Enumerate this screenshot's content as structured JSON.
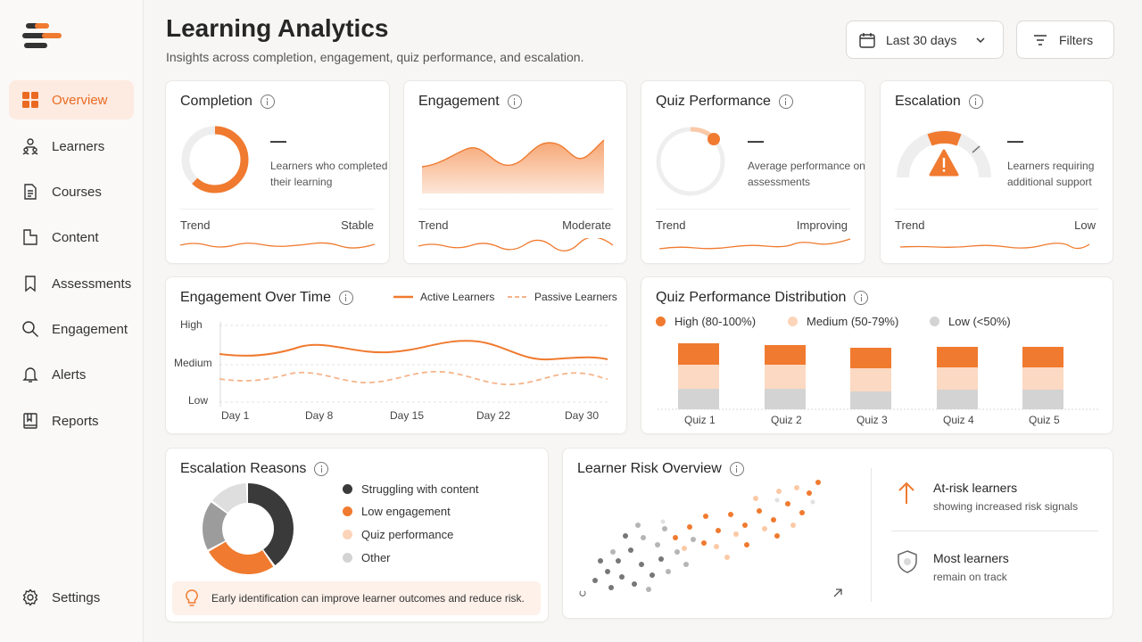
{
  "sidebar": {
    "items": [
      {
        "label": "Overview",
        "icon": "grid-icon",
        "active": true
      },
      {
        "label": "Learners",
        "icon": "users-icon"
      },
      {
        "label": "Courses",
        "icon": "document-icon"
      },
      {
        "label": "Content",
        "icon": "folder-icon"
      },
      {
        "label": "Assessments",
        "icon": "bookmark-icon"
      },
      {
        "label": "Engagement",
        "icon": "search-icon"
      },
      {
        "label": "Alerts",
        "icon": "bell-icon"
      },
      {
        "label": "Reports",
        "icon": "book-icon"
      }
    ],
    "settings_label": "Settings"
  },
  "header": {
    "title": "Learning Analytics",
    "subtitle": "Insights across completion, engagement, quiz performance, and escalation.",
    "date_range": "Last 30 days",
    "filters_label": "Filters"
  },
  "kpis": {
    "completion": {
      "title": "Completion",
      "value": "—",
      "description": "Learners who completed their learning",
      "trend_label": "Trend",
      "trend_value": "Stable",
      "ring_fraction": 0.62
    },
    "engagement": {
      "title": "Engagement",
      "trend_label": "Trend",
      "trend_value": "Moderate"
    },
    "quiz": {
      "title": "Quiz Performance",
      "value": "—",
      "description": "Average performance on assessments",
      "trend_label": "Trend",
      "trend_value": "Improving"
    },
    "escalation": {
      "title": "Escalation",
      "value": "—",
      "description": "Learners requiring additional support",
      "trend_label": "Trend",
      "trend_value": "Low"
    }
  },
  "engagement_chart": {
    "title": "Engagement Over Time",
    "legend_active": "Active Learners",
    "legend_passive": "Passive Learners",
    "y_labels": [
      "High",
      "Medium",
      "Low"
    ],
    "x_labels": [
      "Day 1",
      "Day 8",
      "Day 15",
      "Day 22",
      "Day 30"
    ]
  },
  "quiz_distribution": {
    "title": "Quiz Performance Distribution",
    "legend": [
      "High (80-100%)",
      "Medium (50-79%)",
      "Low (<50%)"
    ],
    "quizzes": [
      "Quiz 1",
      "Quiz 2",
      "Quiz 3",
      "Quiz 4",
      "Quiz 5"
    ]
  },
  "escalation_reasons": {
    "title": "Escalation Reasons",
    "items": [
      "Struggling with content",
      "Low engagement",
      "Quiz performance",
      "Other"
    ],
    "tip": "Early identification can improve learner outcomes and reduce risk."
  },
  "risk_overview": {
    "title": "Learner Risk Overview",
    "at_risk_title": "At-risk learners",
    "at_risk_desc": "showing increased risk signals",
    "on_track_title": "Most learners",
    "on_track_desc": "remain on track"
  },
  "colors": {
    "accent": "#f07a2f",
    "accent_light": "#fcd4b9",
    "gray": "#d3d3d3",
    "dark": "#3a3a3a"
  }
}
